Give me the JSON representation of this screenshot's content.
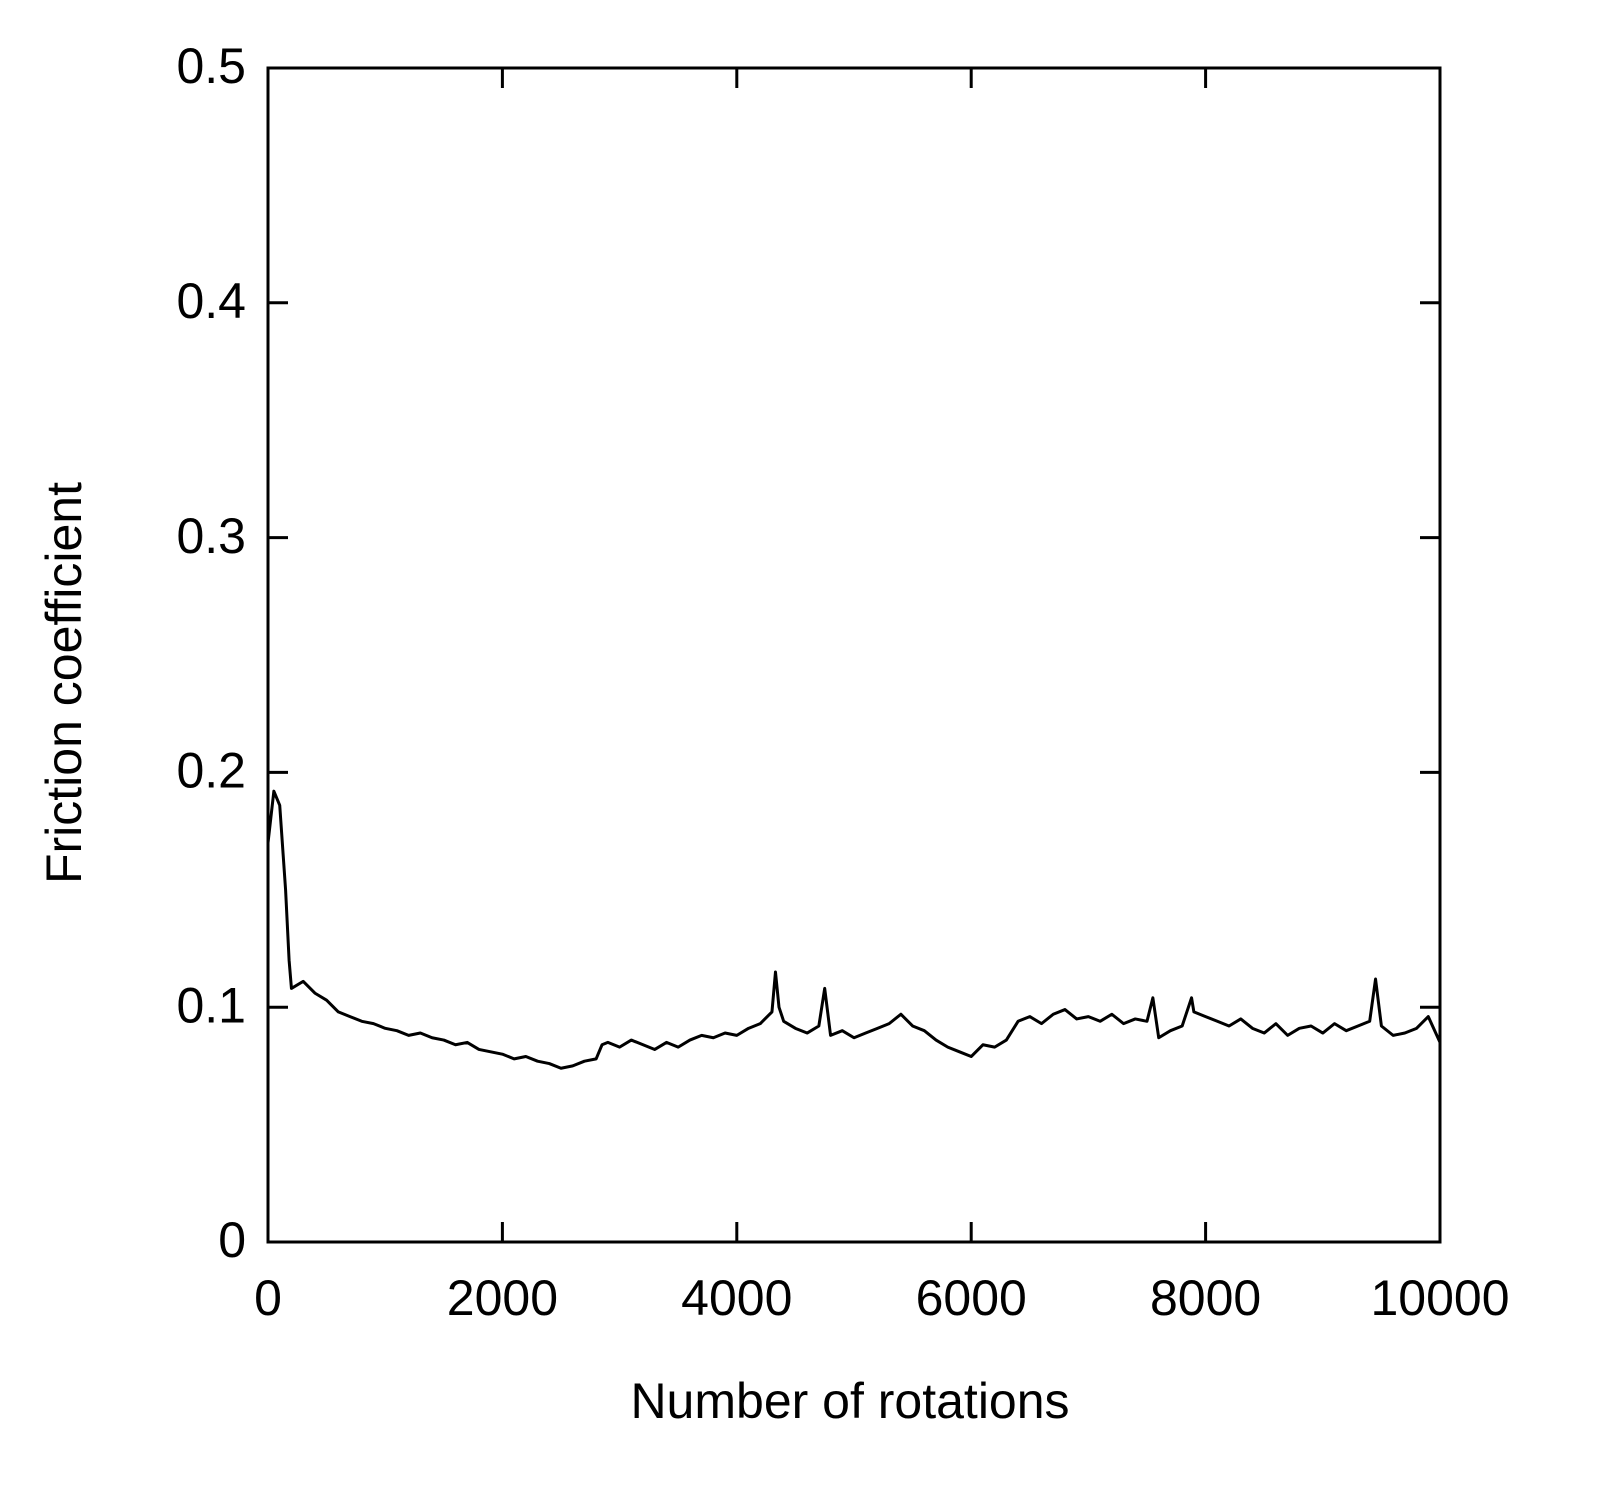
{
  "chart_data": {
    "type": "line",
    "x_label": "Number of rotations",
    "y_label": "Friction coefficient",
    "xlim": [
      0,
      10000
    ],
    "xticks": [
      0,
      2000,
      4000,
      6000,
      8000,
      10000
    ],
    "ylim": [
      0,
      0.5
    ],
    "yticks": [
      0,
      0.1,
      0.2,
      0.3,
      0.4,
      0.5
    ],
    "grid": false,
    "series": [
      {
        "name": "Friction coefficient",
        "color": "#000000",
        "x": [
          0,
          50,
          100,
          150,
          180,
          200,
          300,
          400,
          500,
          600,
          700,
          800,
          900,
          1000,
          1100,
          1200,
          1300,
          1400,
          1500,
          1600,
          1700,
          1800,
          1900,
          2000,
          2100,
          2200,
          2300,
          2400,
          2500,
          2600,
          2700,
          2800,
          2850,
          2900,
          3000,
          3100,
          3200,
          3300,
          3400,
          3500,
          3600,
          3700,
          3800,
          3900,
          4000,
          4100,
          4200,
          4300,
          4330,
          4360,
          4400,
          4500,
          4600,
          4700,
          4750,
          4800,
          4900,
          5000,
          5100,
          5200,
          5300,
          5400,
          5500,
          5600,
          5700,
          5800,
          5900,
          6000,
          6100,
          6200,
          6300,
          6400,
          6500,
          6600,
          6700,
          6800,
          6900,
          7000,
          7100,
          7200,
          7300,
          7400,
          7500,
          7550,
          7600,
          7700,
          7800,
          7880,
          7900,
          8000,
          8100,
          8200,
          8300,
          8400,
          8500,
          8600,
          8700,
          8800,
          8900,
          9000,
          9100,
          9200,
          9300,
          9400,
          9450,
          9500,
          9600,
          9700,
          9800,
          9900,
          10000
        ],
        "values": [
          0.17,
          0.192,
          0.186,
          0.15,
          0.12,
          0.108,
          0.111,
          0.106,
          0.103,
          0.098,
          0.096,
          0.094,
          0.093,
          0.091,
          0.09,
          0.088,
          0.089,
          0.087,
          0.086,
          0.084,
          0.085,
          0.082,
          0.081,
          0.08,
          0.078,
          0.079,
          0.077,
          0.076,
          0.074,
          0.075,
          0.077,
          0.078,
          0.084,
          0.085,
          0.083,
          0.086,
          0.084,
          0.082,
          0.085,
          0.083,
          0.086,
          0.088,
          0.087,
          0.089,
          0.088,
          0.091,
          0.093,
          0.098,
          0.115,
          0.1,
          0.094,
          0.091,
          0.089,
          0.092,
          0.108,
          0.088,
          0.09,
          0.087,
          0.089,
          0.091,
          0.093,
          0.097,
          0.092,
          0.09,
          0.086,
          0.083,
          0.081,
          0.079,
          0.084,
          0.083,
          0.086,
          0.094,
          0.096,
          0.093,
          0.097,
          0.099,
          0.095,
          0.096,
          0.094,
          0.097,
          0.093,
          0.095,
          0.094,
          0.104,
          0.087,
          0.09,
          0.092,
          0.104,
          0.098,
          0.096,
          0.094,
          0.092,
          0.095,
          0.091,
          0.089,
          0.093,
          0.088,
          0.091,
          0.092,
          0.089,
          0.093,
          0.09,
          0.092,
          0.094,
          0.112,
          0.092,
          0.088,
          0.089,
          0.091,
          0.096,
          0.085
        ]
      }
    ]
  }
}
